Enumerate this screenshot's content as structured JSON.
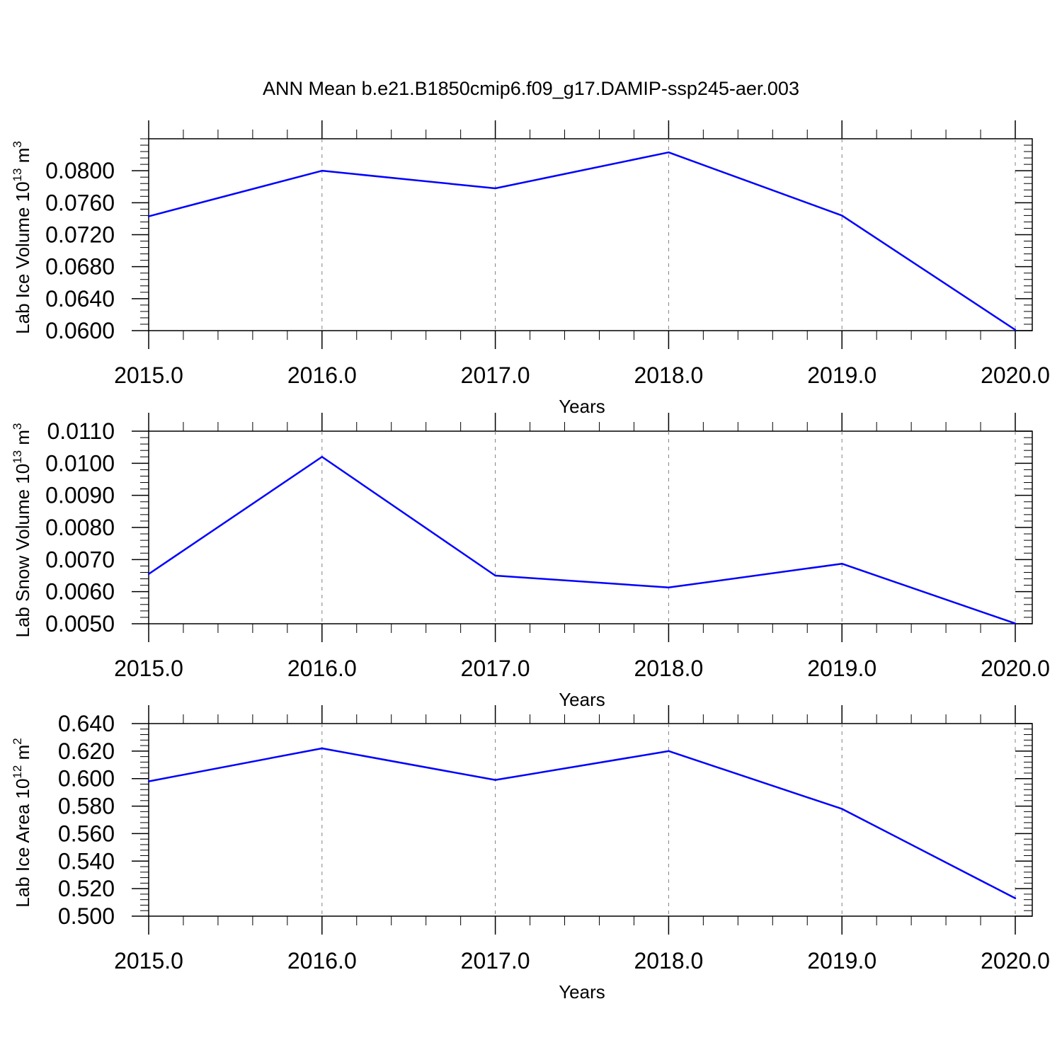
{
  "title": "ANN Mean b.e21.B1850cmip6.f09_g17.DAMIP-ssp245-aer.003",
  "colors": {
    "line": "#0000ff",
    "axis": "#000000",
    "grid": "#808080"
  },
  "chart_data": [
    {
      "type": "line",
      "xlabel": "Years",
      "ylabel": {
        "text": "Lab Ice Volume 10",
        "exp": "13",
        "unit": " m",
        "unit_exp": "3"
      },
      "x": [
        2015,
        2016,
        2017,
        2018,
        2019,
        2020
      ],
      "values": [
        0.0743,
        0.08,
        0.0778,
        0.0823,
        0.0744,
        0.0601
      ],
      "xlim": [
        2015,
        2020
      ],
      "ylim": [
        0.06,
        0.084
      ],
      "yticks": [
        "0.0600",
        "0.0640",
        "0.0680",
        "0.0720",
        "0.0760",
        "0.0800"
      ],
      "xticks": [
        "2015.0",
        "2016.0",
        "2017.0",
        "2018.0",
        "2019.0",
        "2020.0"
      ],
      "vertical_grid": "dashed"
    },
    {
      "type": "line",
      "xlabel": "Years",
      "ylabel": {
        "text": "Lab Snow Volume 10",
        "exp": "13",
        "unit": " m",
        "unit_exp": "3"
      },
      "x": [
        2015,
        2016,
        2017,
        2018,
        2019,
        2020
      ],
      "values": [
        0.00655,
        0.0102,
        0.0065,
        0.00613,
        0.00687,
        0.00501
      ],
      "xlim": [
        2015,
        2020
      ],
      "ylim": [
        0.005,
        0.011
      ],
      "yticks": [
        "0.0050",
        "0.0060",
        "0.0070",
        "0.0080",
        "0.0090",
        "0.0100",
        "0.0110"
      ],
      "xticks": [
        "2015.0",
        "2016.0",
        "2017.0",
        "2018.0",
        "2019.0",
        "2020.0"
      ],
      "vertical_grid": "dashed"
    },
    {
      "type": "line",
      "xlabel": "Years",
      "ylabel": {
        "text": "Lab Ice Area 10",
        "exp": "12",
        "unit": " m",
        "unit_exp": "2"
      },
      "x": [
        2015,
        2016,
        2017,
        2018,
        2019,
        2020
      ],
      "values": [
        0.598,
        0.622,
        0.599,
        0.62,
        0.578,
        0.513
      ],
      "xlim": [
        2015,
        2020
      ],
      "ylim": [
        0.5,
        0.64
      ],
      "yticks": [
        "0.500",
        "0.520",
        "0.540",
        "0.560",
        "0.580",
        "0.600",
        "0.620",
        "0.640"
      ],
      "xticks": [
        "2015.0",
        "2016.0",
        "2017.0",
        "2018.0",
        "2019.0",
        "2020.0"
      ],
      "vertical_grid": "dashed"
    }
  ]
}
